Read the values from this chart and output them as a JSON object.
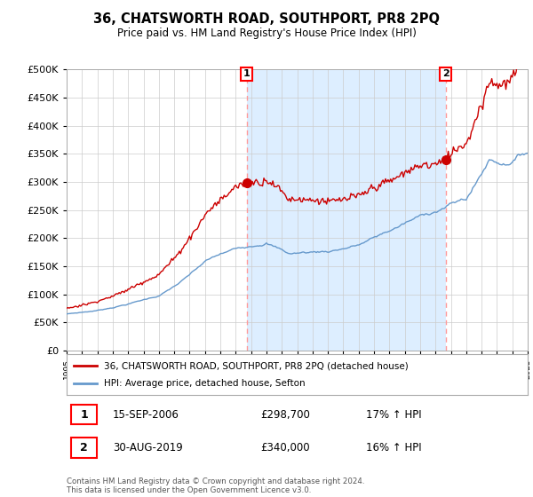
{
  "title": "36, CHATSWORTH ROAD, SOUTHPORT, PR8 2PQ",
  "subtitle": "Price paid vs. HM Land Registry's House Price Index (HPI)",
  "legend_line1": "36, CHATSWORTH ROAD, SOUTHPORT, PR8 2PQ (detached house)",
  "legend_line2": "HPI: Average price, detached house, Sefton",
  "sale1_date": "15-SEP-2006",
  "sale1_price": "£298,700",
  "sale1_hpi": "17% ↑ HPI",
  "sale1_year": 2006.71,
  "sale1_value": 298700,
  "sale2_date": "30-AUG-2019",
  "sale2_price": "£340,000",
  "sale2_hpi": "16% ↑ HPI",
  "sale2_year": 2019.66,
  "sale2_value": 340000,
  "red_color": "#cc0000",
  "blue_color": "#6699cc",
  "shade_color": "#ddeeff",
  "vline_color": "#ff9999",
  "background_color": "#ffffff",
  "grid_color": "#cccccc",
  "ylim": [
    0,
    500000
  ],
  "xlim_start": 1995,
  "xlim_end": 2025,
  "footer": "Contains HM Land Registry data © Crown copyright and database right 2024.\nThis data is licensed under the Open Government Licence v3.0."
}
